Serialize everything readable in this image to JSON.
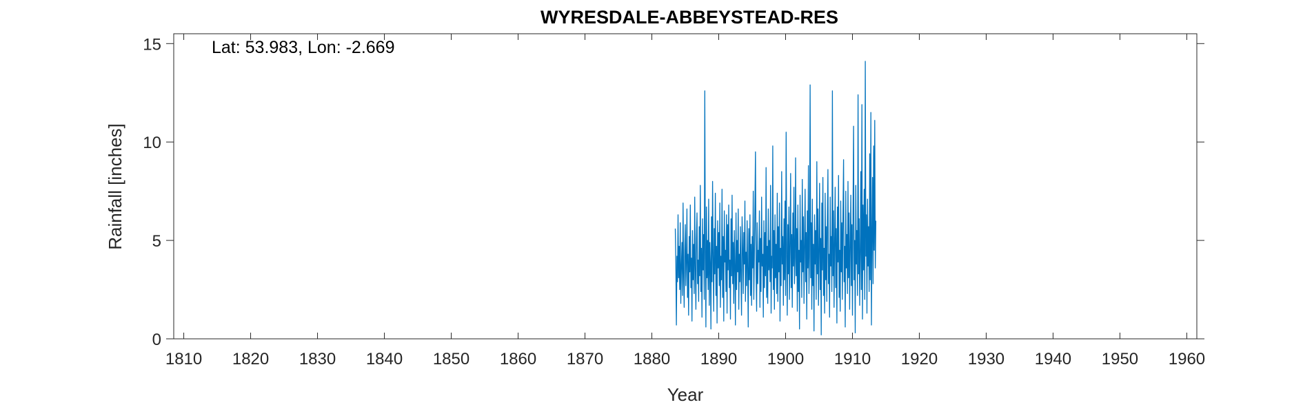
{
  "chart_data": {
    "type": "line",
    "title": "WYRESDALE-ABBEYSTEAD-RES",
    "annotation": "Lat: 53.983, Lon: -2.669",
    "xlabel": "Year",
    "ylabel": "Rainfall [inches]",
    "xlim": [
      1808.5,
      1961.5
    ],
    "ylim": [
      0,
      15.5
    ],
    "xticks": [
      1810,
      1820,
      1830,
      1840,
      1850,
      1860,
      1870,
      1880,
      1890,
      1900,
      1910,
      1920,
      1930,
      1940,
      1950,
      1960
    ],
    "yticks": [
      0,
      5,
      10,
      15
    ],
    "grid": false,
    "line_color": "#0072BD",
    "series": [
      {
        "x_start": 1883.5,
        "x_step": 0.0833333,
        "values": [
          5.6,
          3.8,
          0.7,
          4.2,
          2.9,
          6.3,
          3.1,
          4.7,
          2.5,
          5.9,
          1.8,
          3.6,
          4.9,
          2.2,
          6.9,
          3.3,
          1.6,
          4.5,
          5.8,
          2.7,
          3.9,
          6.6,
          2.1,
          4.3,
          1.2,
          5.2,
          3.4,
          6.8,
          2.6,
          4.1,
          0.9,
          5.5,
          3.0,
          4.8,
          2.3,
          7.2,
          3.7,
          1.5,
          5.1,
          6.4,
          2.8,
          4.0,
          1.9,
          5.7,
          3.2,
          7.8,
          2.4,
          4.6,
          1.1,
          6.1,
          3.5,
          5.3,
          2.0,
          12.6,
          4.4,
          0.6,
          6.7,
          3.1,
          5.0,
          2.5,
          7.1,
          1.7,
          4.9,
          3.8,
          0.5,
          6.2,
          2.9,
          8.0,
          4.1,
          1.4,
          5.6,
          3.3,
          7.4,
          2.2,
          4.7,
          0.8,
          6.0,
          3.6,
          5.4,
          2.7,
          6.9,
          1.6,
          4.2,
          3.0,
          7.6,
          2.1,
          5.2,
          0.9,
          6.5,
          3.9,
          4.5,
          2.4,
          6.3,
          1.3,
          5.8,
          3.5,
          6.8,
          2.6,
          4.0,
          1.0,
          6.1,
          3.2,
          7.3,
          2.8,
          4.9,
          1.8,
          5.5,
          3.7,
          0.7,
          6.4,
          2.5,
          5.0,
          3.4,
          6.6,
          1.5,
          4.3,
          2.9,
          5.7,
          3.1,
          1.2,
          6.2,
          4.6,
          2.3,
          5.4,
          3.8,
          7.0,
          1.9,
          4.4,
          2.7,
          6.0,
          3.5,
          0.6,
          5.6,
          3.0,
          6.3,
          2.2,
          4.8,
          1.7,
          5.2,
          3.6,
          7.5,
          2.0,
          4.1,
          6.7,
          9.5,
          3.3,
          1.4,
          5.9,
          2.8,
          4.5,
          3.9,
          6.5,
          1.6,
          5.1,
          2.4,
          7.2,
          3.7,
          4.3,
          1.1,
          6.0,
          2.6,
          5.4,
          3.2,
          8.7,
          2.1,
          4.7,
          1.8,
          6.6,
          3.5,
          5.0,
          2.9,
          7.8,
          1.3,
          4.2,
          3.6,
          9.8,
          2.5,
          5.5,
          1.5,
          6.3,
          3.1,
          4.8,
          2.3,
          7.4,
          1.9,
          5.7,
          3.4,
          6.9,
          0.9,
          4.6,
          2.7,
          8.5,
          3.8,
          5.2,
          1.7,
          6.1,
          3.0,
          7.0,
          2.2,
          10.5,
          4.4,
          1.2,
          5.8,
          3.3,
          6.7,
          2.0,
          4.9,
          8.4,
          2.6,
          5.3,
          1.6,
          6.4,
          3.7,
          7.7,
          2.8,
          4.1,
          9.2,
          3.2,
          5.6,
          1.4,
          6.8,
          2.4,
          4.5,
          0.5,
          7.3,
          3.9,
          5.0,
          2.1,
          8.1,
          3.4,
          6.2,
          1.8,
          4.7,
          7.6,
          2.9,
          5.4,
          1.0,
          6.5,
          3.6,
          8.8,
          2.3,
          4.2,
          12.9,
          3.1,
          5.9,
          1.5,
          7.1,
          2.7,
          4.8,
          0.4,
          6.3,
          3.8,
          5.5,
          2.0,
          9.0,
          3.3,
          6.6,
          1.7,
          4.4,
          7.9,
          2.5,
          5.1,
          0.2,
          6.9,
          3.5,
          8.2,
          2.2,
          4.6,
          1.3,
          7.4,
          3.0,
          5.7,
          1.9,
          6.0,
          8.6,
          2.8,
          4.3,
          1.1,
          7.2,
          3.7,
          5.2,
          2.4,
          12.6,
          3.2,
          6.5,
          1.6,
          4.9,
          7.7,
          2.6,
          5.6,
          0.8,
          6.7,
          3.9,
          8.3,
          2.1,
          4.5,
          1.4,
          7.0,
          3.4,
          5.9,
          2.0,
          6.2,
          9.1,
          2.9,
          4.7,
          0.6,
          7.5,
          3.6,
          5.3,
          2.3,
          8.0,
          3.1,
          6.4,
          1.5,
          4.8,
          7.3,
          2.7,
          5.8,
          1.2,
          6.6,
          10.8,
          3.0,
          5.0,
          0.3,
          7.8,
          3.8,
          5.5,
          2.2,
          12.4,
          3.3,
          6.1,
          1.7,
          4.4,
          8.5,
          2.5,
          11.9,
          1.0,
          6.8,
          3.5,
          7.6,
          2.0,
          14.1,
          4.2,
          6.3,
          1.3,
          7.1,
          3.7,
          5.7,
          2.4,
          9.4,
          3.0,
          11.5,
          0.7,
          5.1,
          8.2,
          2.8,
          9.8,
          4.5,
          11.1,
          3.6,
          6.0
        ]
      }
    ]
  }
}
